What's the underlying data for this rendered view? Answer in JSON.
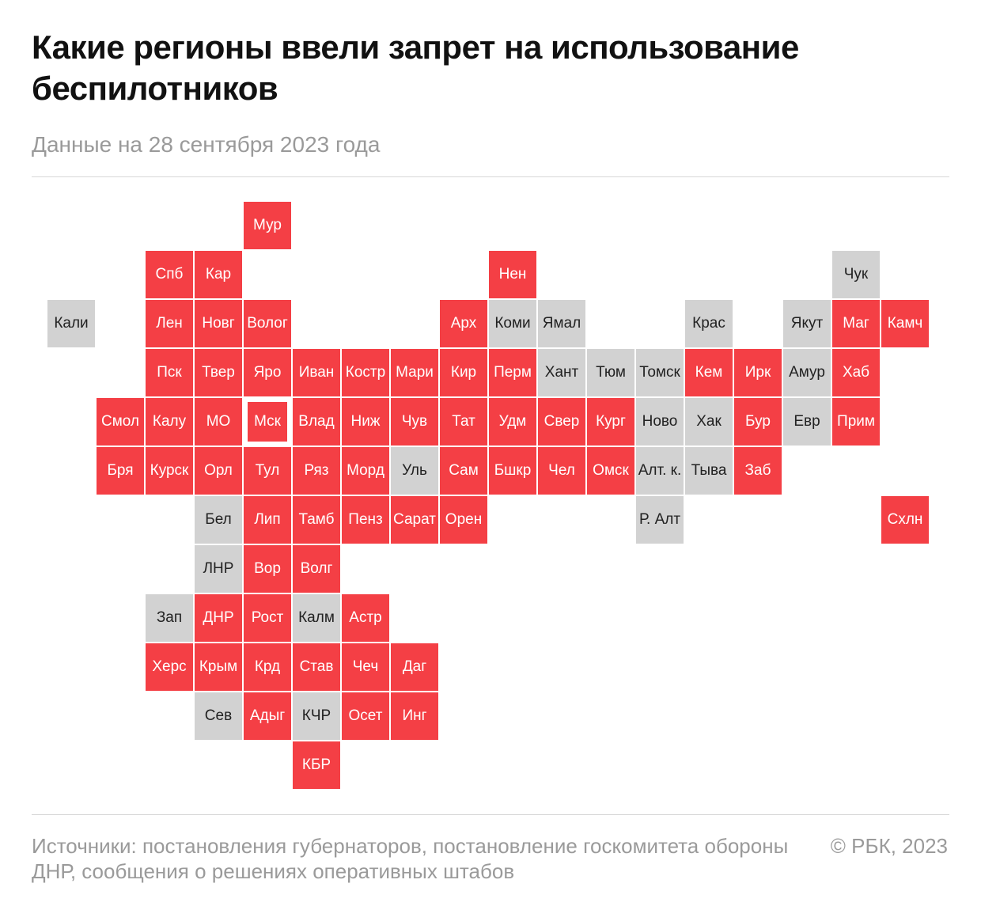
{
  "title": "Какие регионы ввели запрет на использование беспилотников",
  "subtitle": "Данные на 28 сентября 2023 года",
  "footer": {
    "source": "Источники: постановления губернаторов, постановление госкомитета обороны ДНР, сообщения о решениях оперативных штабов",
    "copyright": "© РБК, 2023"
  },
  "colors": {
    "ban": "#f43f45",
    "no_ban": "#d2d2d2"
  },
  "regions": [
    {
      "name": "Мур",
      "col": 4,
      "row": 0,
      "ban": true
    },
    {
      "name": "Спб",
      "col": 2,
      "row": 1,
      "ban": true
    },
    {
      "name": "Кар",
      "col": 3,
      "row": 1,
      "ban": true
    },
    {
      "name": "Нен",
      "col": 9,
      "row": 1,
      "ban": true
    },
    {
      "name": "Чук",
      "col": 16,
      "row": 1,
      "ban": false
    },
    {
      "name": "Кали",
      "col": 0,
      "row": 2,
      "ban": false
    },
    {
      "name": "Лен",
      "col": 2,
      "row": 2,
      "ban": true
    },
    {
      "name": "Новг",
      "col": 3,
      "row": 2,
      "ban": true
    },
    {
      "name": "Волог",
      "col": 4,
      "row": 2,
      "ban": true
    },
    {
      "name": "Арх",
      "col": 8,
      "row": 2,
      "ban": true
    },
    {
      "name": "Коми",
      "col": 9,
      "row": 2,
      "ban": false
    },
    {
      "name": "Ямал",
      "col": 10,
      "row": 2,
      "ban": false
    },
    {
      "name": "Крас",
      "col": 13,
      "row": 2,
      "ban": false
    },
    {
      "name": "Якут",
      "col": 15,
      "row": 2,
      "ban": false
    },
    {
      "name": "Маг",
      "col": 16,
      "row": 2,
      "ban": true
    },
    {
      "name": "Камч",
      "col": 17,
      "row": 2,
      "ban": true
    },
    {
      "name": "Пск",
      "col": 2,
      "row": 3,
      "ban": true
    },
    {
      "name": "Твер",
      "col": 3,
      "row": 3,
      "ban": true
    },
    {
      "name": "Яро",
      "col": 4,
      "row": 3,
      "ban": true
    },
    {
      "name": "Иван",
      "col": 5,
      "row": 3,
      "ban": true
    },
    {
      "name": "Костр",
      "col": 6,
      "row": 3,
      "ban": true
    },
    {
      "name": "Мари",
      "col": 7,
      "row": 3,
      "ban": true
    },
    {
      "name": "Кир",
      "col": 8,
      "row": 3,
      "ban": true
    },
    {
      "name": "Перм",
      "col": 9,
      "row": 3,
      "ban": true
    },
    {
      "name": "Хант",
      "col": 10,
      "row": 3,
      "ban": false
    },
    {
      "name": "Тюм",
      "col": 11,
      "row": 3,
      "ban": false
    },
    {
      "name": "Томск",
      "col": 12,
      "row": 3,
      "ban": false
    },
    {
      "name": "Кем",
      "col": 13,
      "row": 3,
      "ban": true
    },
    {
      "name": "Ирк",
      "col": 14,
      "row": 3,
      "ban": true
    },
    {
      "name": "Амур",
      "col": 15,
      "row": 3,
      "ban": false
    },
    {
      "name": "Хаб",
      "col": 16,
      "row": 3,
      "ban": true
    },
    {
      "name": "Смол",
      "col": 1,
      "row": 4,
      "ban": true
    },
    {
      "name": "Калу",
      "col": 2,
      "row": 4,
      "ban": true
    },
    {
      "name": "МО",
      "col": 3,
      "row": 4,
      "ban": true
    },
    {
      "name": "Мск",
      "col": 4,
      "row": 4,
      "ban": true,
      "focus": true
    },
    {
      "name": "Влад",
      "col": 5,
      "row": 4,
      "ban": true
    },
    {
      "name": "Ниж",
      "col": 6,
      "row": 4,
      "ban": true
    },
    {
      "name": "Чув",
      "col": 7,
      "row": 4,
      "ban": true
    },
    {
      "name": "Тат",
      "col": 8,
      "row": 4,
      "ban": true
    },
    {
      "name": "Удм",
      "col": 9,
      "row": 4,
      "ban": true
    },
    {
      "name": "Свер",
      "col": 10,
      "row": 4,
      "ban": true
    },
    {
      "name": "Кург",
      "col": 11,
      "row": 4,
      "ban": true
    },
    {
      "name": "Ново",
      "col": 12,
      "row": 4,
      "ban": false
    },
    {
      "name": "Хак",
      "col": 13,
      "row": 4,
      "ban": false
    },
    {
      "name": "Бур",
      "col": 14,
      "row": 4,
      "ban": true
    },
    {
      "name": "Евр",
      "col": 15,
      "row": 4,
      "ban": false
    },
    {
      "name": "Прим",
      "col": 16,
      "row": 4,
      "ban": true
    },
    {
      "name": "Бря",
      "col": 1,
      "row": 5,
      "ban": true
    },
    {
      "name": "Курск",
      "col": 2,
      "row": 5,
      "ban": true
    },
    {
      "name": "Орл",
      "col": 3,
      "row": 5,
      "ban": true
    },
    {
      "name": "Тул",
      "col": 4,
      "row": 5,
      "ban": true
    },
    {
      "name": "Ряз",
      "col": 5,
      "row": 5,
      "ban": true
    },
    {
      "name": "Морд",
      "col": 6,
      "row": 5,
      "ban": true
    },
    {
      "name": "Уль",
      "col": 7,
      "row": 5,
      "ban": false
    },
    {
      "name": "Сам",
      "col": 8,
      "row": 5,
      "ban": true
    },
    {
      "name": "Бшкр",
      "col": 9,
      "row": 5,
      "ban": true
    },
    {
      "name": "Чел",
      "col": 10,
      "row": 5,
      "ban": true
    },
    {
      "name": "Омск",
      "col": 11,
      "row": 5,
      "ban": true
    },
    {
      "name": "Алт. к.",
      "col": 12,
      "row": 5,
      "ban": false
    },
    {
      "name": "Тыва",
      "col": 13,
      "row": 5,
      "ban": false
    },
    {
      "name": "Заб",
      "col": 14,
      "row": 5,
      "ban": true
    },
    {
      "name": "Бел",
      "col": 3,
      "row": 6,
      "ban": false
    },
    {
      "name": "Лип",
      "col": 4,
      "row": 6,
      "ban": true
    },
    {
      "name": "Тамб",
      "col": 5,
      "row": 6,
      "ban": true
    },
    {
      "name": "Пенз",
      "col": 6,
      "row": 6,
      "ban": true
    },
    {
      "name": "Сарат",
      "col": 7,
      "row": 6,
      "ban": true
    },
    {
      "name": "Орен",
      "col": 8,
      "row": 6,
      "ban": true
    },
    {
      "name": "Р. Алт",
      "col": 12,
      "row": 6,
      "ban": false
    },
    {
      "name": "Схлн",
      "col": 17,
      "row": 6,
      "ban": true
    },
    {
      "name": "ЛНР",
      "col": 3,
      "row": 7,
      "ban": false
    },
    {
      "name": "Вор",
      "col": 4,
      "row": 7,
      "ban": true
    },
    {
      "name": "Волг",
      "col": 5,
      "row": 7,
      "ban": true
    },
    {
      "name": "Зап",
      "col": 2,
      "row": 8,
      "ban": false
    },
    {
      "name": "ДНР",
      "col": 3,
      "row": 8,
      "ban": true
    },
    {
      "name": "Рост",
      "col": 4,
      "row": 8,
      "ban": true
    },
    {
      "name": "Калм",
      "col": 5,
      "row": 8,
      "ban": false
    },
    {
      "name": "Астр",
      "col": 6,
      "row": 8,
      "ban": true
    },
    {
      "name": "Херс",
      "col": 2,
      "row": 9,
      "ban": true
    },
    {
      "name": "Крым",
      "col": 3,
      "row": 9,
      "ban": true
    },
    {
      "name": "Крд",
      "col": 4,
      "row": 9,
      "ban": true
    },
    {
      "name": "Став",
      "col": 5,
      "row": 9,
      "ban": true
    },
    {
      "name": "Чеч",
      "col": 6,
      "row": 9,
      "ban": true
    },
    {
      "name": "Даг",
      "col": 7,
      "row": 9,
      "ban": true
    },
    {
      "name": "Сев",
      "col": 3,
      "row": 10,
      "ban": false
    },
    {
      "name": "Адыг",
      "col": 4,
      "row": 10,
      "ban": true
    },
    {
      "name": "КЧР",
      "col": 5,
      "row": 10,
      "ban": false
    },
    {
      "name": "Осет",
      "col": 6,
      "row": 10,
      "ban": true
    },
    {
      "name": "Инг",
      "col": 7,
      "row": 10,
      "ban": true
    },
    {
      "name": "КБР",
      "col": 5,
      "row": 11,
      "ban": true
    }
  ]
}
